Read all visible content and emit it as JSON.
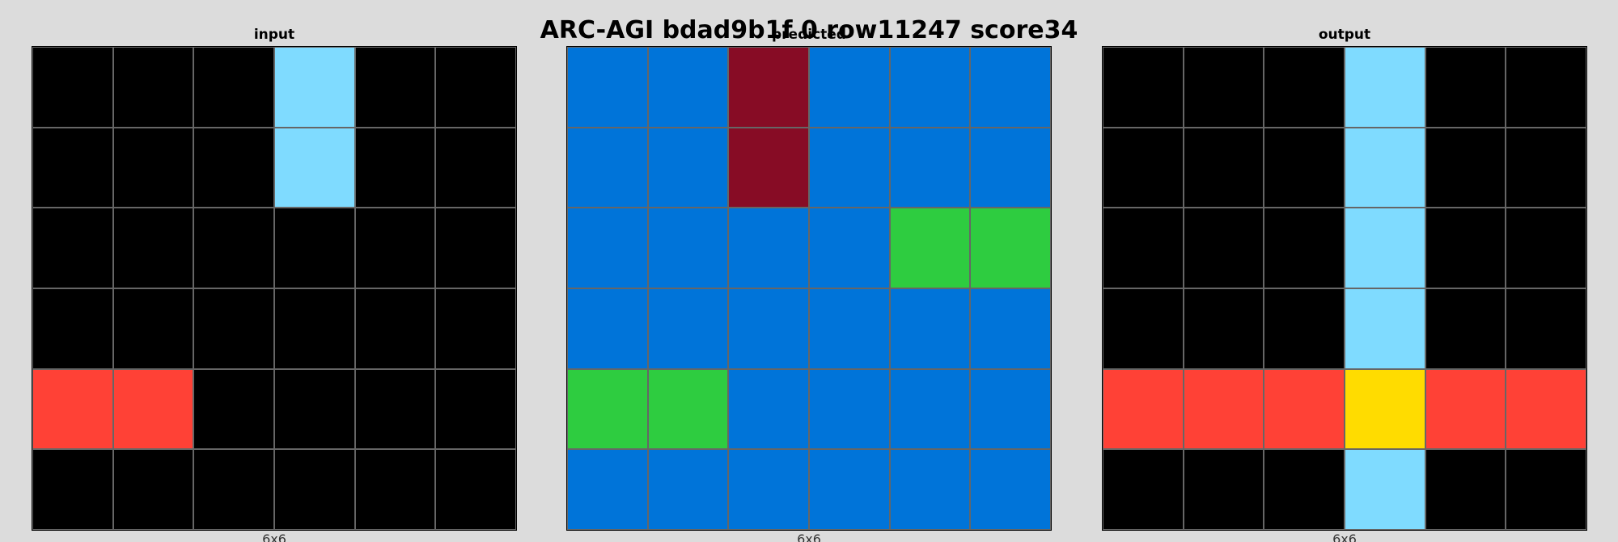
{
  "title": "ARC-AGI bdad9b1f 0 row11247 score34",
  "palette": {
    "0": "#000000",
    "1": "#0074D9",
    "2": "#FF4136",
    "3": "#2ECC40",
    "4": "#FFDC00",
    "8": "#7FDBFF",
    "9": "#870C25"
  },
  "panels": [
    {
      "label": "input",
      "dims": "6x6",
      "grid": [
        [
          0,
          0,
          0,
          8,
          0,
          0
        ],
        [
          0,
          0,
          0,
          8,
          0,
          0
        ],
        [
          0,
          0,
          0,
          0,
          0,
          0
        ],
        [
          0,
          0,
          0,
          0,
          0,
          0
        ],
        [
          2,
          2,
          0,
          0,
          0,
          0
        ],
        [
          0,
          0,
          0,
          0,
          0,
          0
        ]
      ]
    },
    {
      "label": "predicted",
      "dims": "6x6",
      "grid": [
        [
          1,
          1,
          9,
          1,
          1,
          1
        ],
        [
          1,
          1,
          9,
          1,
          1,
          1
        ],
        [
          1,
          1,
          1,
          1,
          3,
          3
        ],
        [
          1,
          1,
          1,
          1,
          1,
          1
        ],
        [
          3,
          3,
          1,
          1,
          1,
          1
        ],
        [
          1,
          1,
          1,
          1,
          1,
          1
        ]
      ]
    },
    {
      "label": "output",
      "dims": "6x6",
      "grid": [
        [
          0,
          0,
          0,
          8,
          0,
          0
        ],
        [
          0,
          0,
          0,
          8,
          0,
          0
        ],
        [
          0,
          0,
          0,
          8,
          0,
          0
        ],
        [
          0,
          0,
          0,
          8,
          0,
          0
        ],
        [
          2,
          2,
          2,
          4,
          2,
          2
        ],
        [
          0,
          0,
          0,
          8,
          0,
          0
        ]
      ]
    }
  ]
}
